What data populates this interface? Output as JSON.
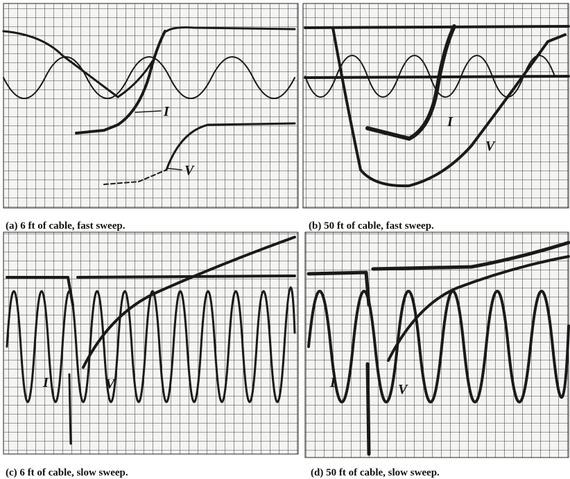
{
  "panels": [
    {
      "caption": "(a)  6 ft of cable, fast sweep.",
      "current_label": "I",
      "voltage_label": "V"
    },
    {
      "caption": "(b)  50 ft of cable, fast sweep.",
      "current_label": "I",
      "voltage_label": "V"
    },
    {
      "caption": "(c)  6 ft of cable, slow sweep.",
      "current_label": "I",
      "voltage_label": "V"
    },
    {
      "caption": "(d)  50 ft of cable, slow sweep.",
      "current_label": "I",
      "voltage_label": "V"
    }
  ]
}
